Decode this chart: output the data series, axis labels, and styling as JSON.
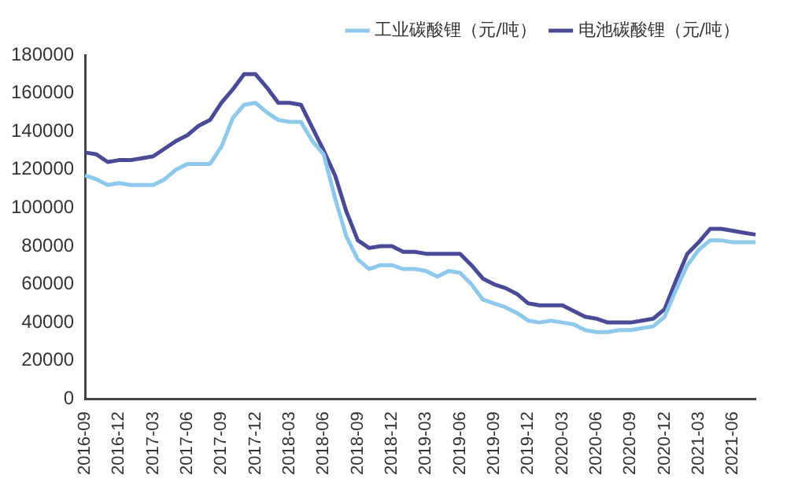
{
  "chart_data": {
    "type": "line",
    "categories": [
      "2016-09",
      null,
      null,
      "2016-12",
      null,
      null,
      "2017-03",
      null,
      null,
      "2017-06",
      null,
      null,
      "2017-09",
      null,
      null,
      "2017-12",
      null,
      null,
      "2018-03",
      null,
      null,
      "2018-06",
      null,
      null,
      "2018-09",
      null,
      null,
      "2018-12",
      null,
      null,
      "2019-03",
      null,
      null,
      "2019-06",
      null,
      null,
      "2019-09",
      null,
      null,
      "2019-12",
      null,
      null,
      "2020-03",
      null,
      null,
      "2020-06",
      null,
      null,
      "2020-09",
      null,
      null,
      "2020-12",
      null,
      null,
      "2021-03",
      null,
      null,
      "2021-06",
      null,
      null
    ],
    "series": [
      {
        "name": "工业碳酸锂（元/吨）",
        "color": "#8ec8ea",
        "values": [
          117000,
          115000,
          112000,
          113000,
          112000,
          112000,
          112000,
          115000,
          120000,
          123000,
          123000,
          123000,
          132000,
          147000,
          154000,
          155000,
          150000,
          146000,
          145000,
          145000,
          135000,
          128000,
          105000,
          85000,
          73000,
          68000,
          70000,
          70000,
          68000,
          68000,
          67000,
          64000,
          67000,
          66000,
          60000,
          52000,
          50000,
          48000,
          45000,
          41000,
          40000,
          41000,
          40000,
          39000,
          36000,
          35000,
          35000,
          36000,
          36000,
          37000,
          38000,
          43000,
          57000,
          70000,
          78000,
          83000,
          83000,
          82000,
          82000,
          82000
        ]
      },
      {
        "name": "电池碳酸锂（元/吨）",
        "color": "#4a4a96",
        "values": [
          129000,
          128000,
          124000,
          125000,
          125000,
          126000,
          127000,
          131000,
          135000,
          138000,
          143000,
          146000,
          155000,
          162000,
          170000,
          170000,
          163000,
          155000,
          155000,
          154000,
          142000,
          130000,
          117000,
          98000,
          83000,
          79000,
          80000,
          80000,
          77000,
          77000,
          76000,
          76000,
          76000,
          76000,
          70000,
          63000,
          60000,
          58000,
          55000,
          50000,
          49000,
          49000,
          49000,
          46000,
          43000,
          42000,
          40000,
          40000,
          40000,
          41000,
          42000,
          47000,
          62000,
          76000,
          82000,
          89000,
          89000,
          88000,
          87000,
          86000
        ]
      }
    ],
    "ylim": [
      0,
      180000
    ],
    "yticks": [
      0,
      20000,
      40000,
      60000,
      80000,
      100000,
      120000,
      140000,
      160000,
      180000
    ],
    "legend": "top",
    "grid": false,
    "marker": "none",
    "line_style": "solid"
  }
}
